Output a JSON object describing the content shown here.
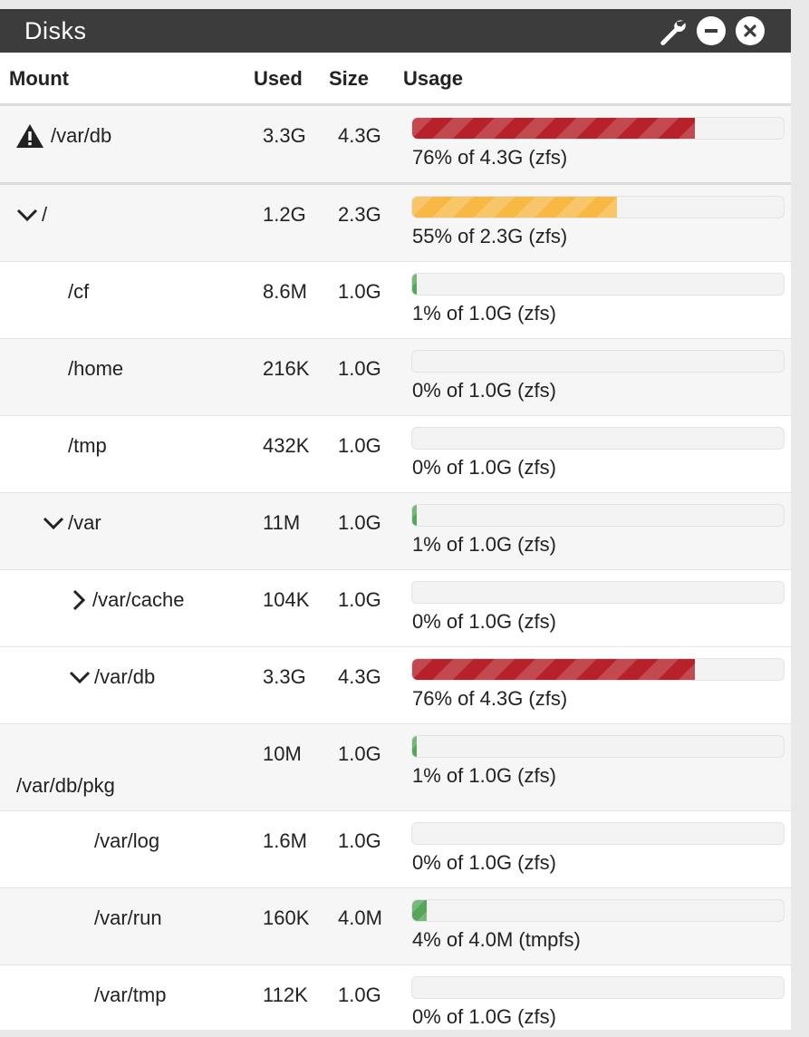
{
  "panel": {
    "title": "Disks"
  },
  "icons": {
    "settings": "wrench-icon",
    "minimize": "minus-circle-icon",
    "close": "close-circle-icon",
    "warning": "warning-triangle-icon"
  },
  "colors": {
    "danger": "#b6212a",
    "warning": "#f7b844",
    "success": "#55a55a",
    "header_bg": "#3c3c3c"
  },
  "table": {
    "headers": {
      "mount": "Mount",
      "used": "Used",
      "size": "Size",
      "usage": "Usage"
    },
    "rows": [
      {
        "mount": "/var/db",
        "used": "3.3G",
        "size": "4.3G",
        "percent": 76,
        "usage_text": "76% of 4.3G (zfs)",
        "status": "danger",
        "warning_icon": true
      },
      {
        "mount": "/",
        "used": "1.2G",
        "size": "2.3G",
        "percent": 55,
        "usage_text": "55% of 2.3G (zfs)",
        "status": "warning",
        "toggle": "expanded"
      },
      {
        "mount": "/cf",
        "used": "8.6M",
        "size": "1.0G",
        "percent": 1,
        "usage_text": "1% of 1.0G (zfs)",
        "status": "success"
      },
      {
        "mount": "/home",
        "used": "216K",
        "size": "1.0G",
        "percent": 0,
        "usage_text": "0% of 1.0G (zfs)",
        "status": "success"
      },
      {
        "mount": "/tmp",
        "used": "432K",
        "size": "1.0G",
        "percent": 0,
        "usage_text": "0% of 1.0G (zfs)",
        "status": "success"
      },
      {
        "mount": "/var",
        "used": "11M",
        "size": "1.0G",
        "percent": 1,
        "usage_text": "1% of 1.0G (zfs)",
        "status": "success",
        "toggle": "expanded"
      },
      {
        "mount": "/var/cache",
        "used": "104K",
        "size": "1.0G",
        "percent": 0,
        "usage_text": "0% of 1.0G (zfs)",
        "status": "success",
        "toggle": "collapsed"
      },
      {
        "mount": "/var/db",
        "used": "3.3G",
        "size": "4.3G",
        "percent": 76,
        "usage_text": "76% of 4.3G (zfs)",
        "status": "danger",
        "toggle": "expanded"
      },
      {
        "mount": "/var/db/pkg",
        "used": "10M",
        "size": "1.0G",
        "percent": 1,
        "usage_text": "1% of 1.0G (zfs)",
        "status": "success"
      },
      {
        "mount": "/var/log",
        "used": "1.6M",
        "size": "1.0G",
        "percent": 0,
        "usage_text": "0% of 1.0G (zfs)",
        "status": "success"
      },
      {
        "mount": "/var/run",
        "used": "160K",
        "size": "4.0M",
        "percent": 4,
        "usage_text": "4% of 4.0M (tmpfs)",
        "status": "success"
      },
      {
        "mount": "/var/tmp",
        "used": "112K",
        "size": "1.0G",
        "percent": 0,
        "usage_text": "0% of 1.0G (zfs)",
        "status": "success"
      }
    ]
  }
}
